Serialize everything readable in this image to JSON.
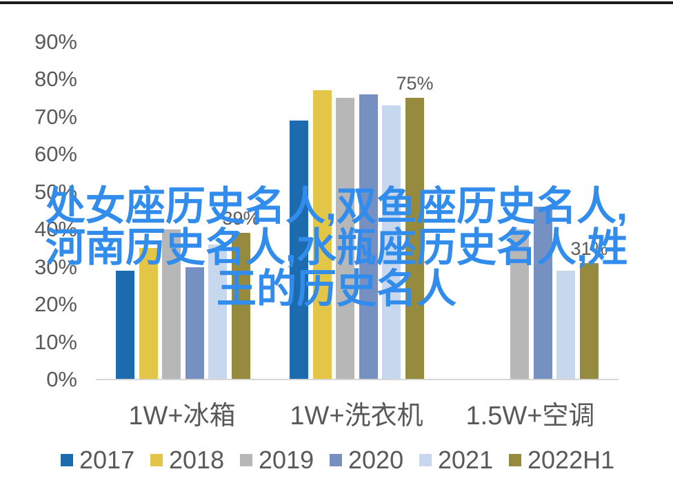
{
  "top_border_color": "#1a1a1a",
  "overlay_title": {
    "lines": [
      "处女座历史名人,双鱼座历史名人,",
      "河南历史名人,水瓶座历史名人,姓",
      "王的历史名人"
    ],
    "color": "#318CEC"
  },
  "chart_data": {
    "type": "bar",
    "title": "",
    "categories": [
      "1W+冰箱",
      "1W+洗衣机",
      "1.5W+空调"
    ],
    "series": [
      {
        "name": "2017",
        "color": "#1B6BAE",
        "values": [
          29,
          69,
          null
        ]
      },
      {
        "name": "2018",
        "color": "#E3C647",
        "values": [
          35,
          77,
          null
        ]
      },
      {
        "name": "2019",
        "color": "#B7B7B7",
        "values": [
          40,
          75,
          40
        ]
      },
      {
        "name": "2020",
        "color": "#7690C2",
        "values": [
          30,
          76,
          46
        ]
      },
      {
        "name": "2021",
        "color": "#C7D7ED",
        "values": [
          36,
          73,
          29
        ]
      },
      {
        "name": "2022H1",
        "color": "#958A3D",
        "values": [
          39,
          75,
          31
        ],
        "data_labels": [
          "39%",
          "75%",
          "31%"
        ]
      }
    ],
    "y_axis": {
      "min": 0,
      "max": 90,
      "step": 10,
      "tick_labels": [
        "0%",
        "10%",
        "20%",
        "30%",
        "40%",
        "50%",
        "60%",
        "70%",
        "80%",
        "90%"
      ]
    },
    "gridlines": false,
    "legend_position": "bottom",
    "data_labels_only_for": "2022H1",
    "text_color": "#595959",
    "axis_line_color": "#D6D6D6"
  }
}
